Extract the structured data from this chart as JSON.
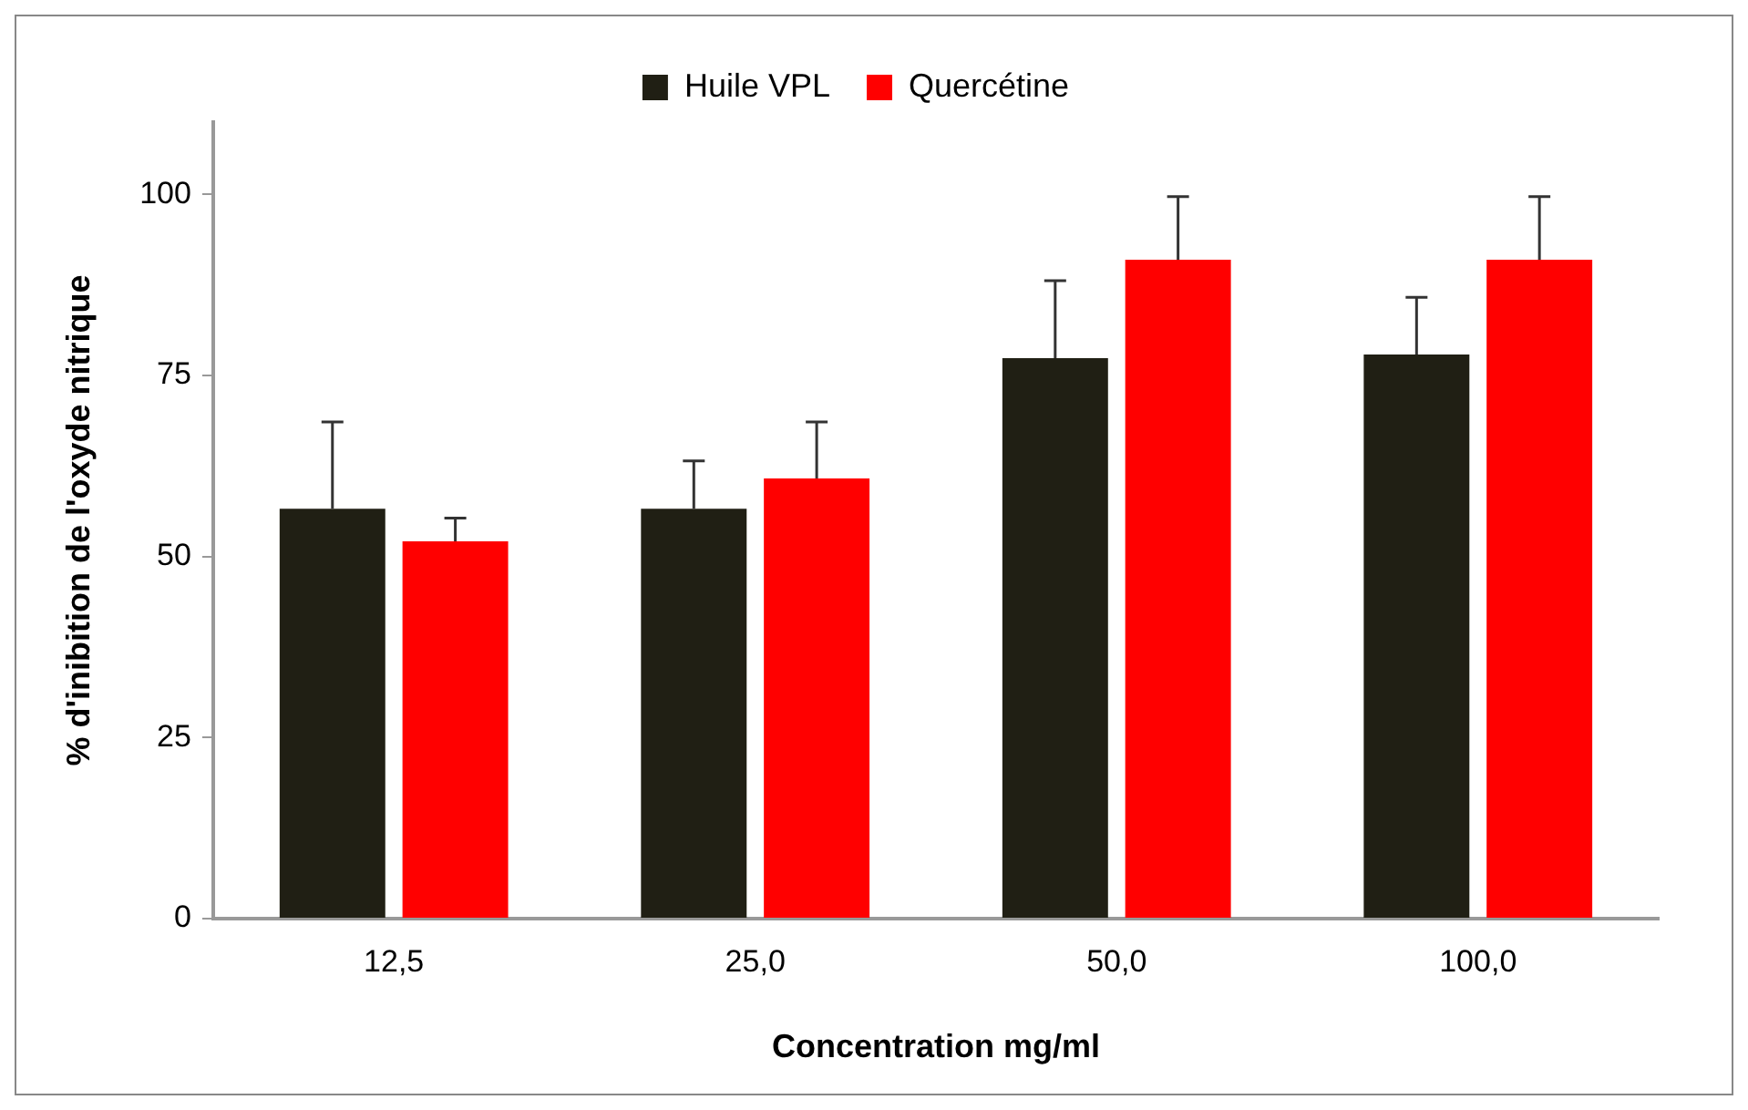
{
  "chart_data": {
    "type": "bar",
    "xlabel": "Concentration mg/ml",
    "ylabel": "% d'inibition de l'oxyde nitrique",
    "categories": [
      "12,5",
      "25,0",
      "50,0",
      "100,0"
    ],
    "series": [
      {
        "name": "Huile VPL",
        "color": "#201f14",
        "values": [
          56.6,
          56.6,
          77.4,
          77.9
        ],
        "errors": [
          [
            56.6,
            68.6
          ],
          [
            56.6,
            63.2
          ],
          [
            77.4,
            88.1
          ],
          [
            77.9,
            85.8
          ]
        ]
      },
      {
        "name": "Quercétine",
        "color": "#ff0000",
        "values": [
          52.1,
          60.8,
          91,
          91
        ],
        "errors": [
          [
            52.1,
            55.3
          ],
          [
            60.8,
            68.6
          ],
          [
            91,
            99.7
          ],
          [
            91,
            99.7
          ]
        ]
      }
    ],
    "ylim": [
      0,
      110
    ],
    "yticks": [
      0,
      25,
      50,
      75,
      100
    ],
    "grid": false,
    "legend": "top"
  }
}
